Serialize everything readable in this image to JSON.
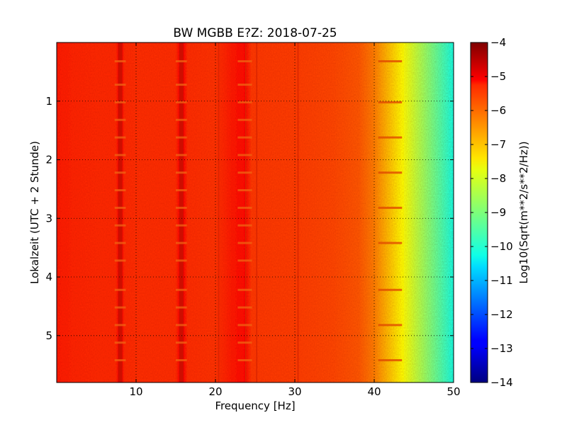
{
  "chart_data": {
    "type": "heatmap",
    "title": "BW MGBB E?Z: 2018-07-25",
    "xlabel": "Frequency [Hz]",
    "ylabel": "Lokalzeit (UTC + 2 Stunde)",
    "xlim": [
      0,
      50
    ],
    "ylim": [
      5.8,
      0
    ],
    "x_ticks": [
      10,
      20,
      30,
      40,
      50
    ],
    "y_ticks": [
      1,
      2,
      3,
      4,
      5
    ],
    "grid": true,
    "colormap": "jet",
    "colorbar": {
      "label": "Log10(Sqrt(m**2/s**2/Hz))",
      "range": [
        -14,
        -4
      ],
      "ticks": [
        -4,
        -5,
        -6,
        -7,
        -8,
        -9,
        -10,
        -11,
        -12,
        -13,
        -14
      ]
    },
    "frequency_profile": {
      "x": [
        0,
        2,
        5,
        7.5,
        8,
        8.5,
        10,
        15,
        15.7,
        16.5,
        20,
        23.8,
        24.5,
        30,
        35,
        38,
        40,
        42,
        44,
        46,
        48,
        50
      ],
      "values": [
        -5.5,
        -5.6,
        -5.65,
        -5.65,
        -5.0,
        -5.65,
        -5.7,
        -5.7,
        -5.1,
        -5.7,
        -5.75,
        -5.3,
        -5.8,
        -5.85,
        -5.95,
        -6.1,
        -6.5,
        -7.2,
        -7.9,
        -8.6,
        -9.3,
        -10.0
      ]
    },
    "spectral_lines_hz": [
      8,
      15.7,
      20.4,
      23.8,
      25.2,
      30.4
    ],
    "dark_bands_hours": [
      0.32,
      0.72,
      1.02,
      1.32,
      1.62,
      1.92,
      2.22,
      2.52,
      2.82,
      3.12,
      3.42,
      3.72,
      4.22,
      4.52,
      4.82,
      5.12,
      5.42
    ]
  },
  "colors": {
    "frame": "#000000",
    "grid": "#000000",
    "background": "#ffffff"
  }
}
